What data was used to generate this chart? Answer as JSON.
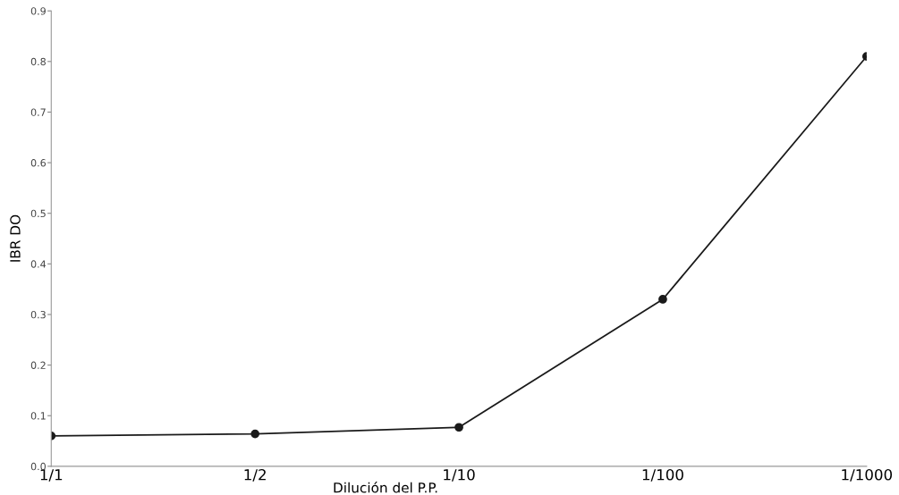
{
  "chart_data": {
    "type": "line",
    "xlabel": "Dilución del P.P.",
    "ylabel": "IBR DO",
    "categories": [
      "1/1",
      "1/2",
      "1/10",
      "1/100",
      "1/1000"
    ],
    "series": [
      {
        "color": "#1a1a1a",
        "values": [
          0.06,
          0.064,
          0.077,
          0.33,
          0.81
        ]
      }
    ],
    "ylim": [
      0,
      0.9
    ],
    "yticks": [
      {
        "value": 0,
        "label": "0.0"
      },
      0.1,
      0.2,
      0.3,
      0.4,
      0.5,
      0.6,
      0.7,
      0.8,
      0.9
    ],
    "marker": "circle",
    "line_style": "solid",
    "grid": false,
    "legend": false
  }
}
